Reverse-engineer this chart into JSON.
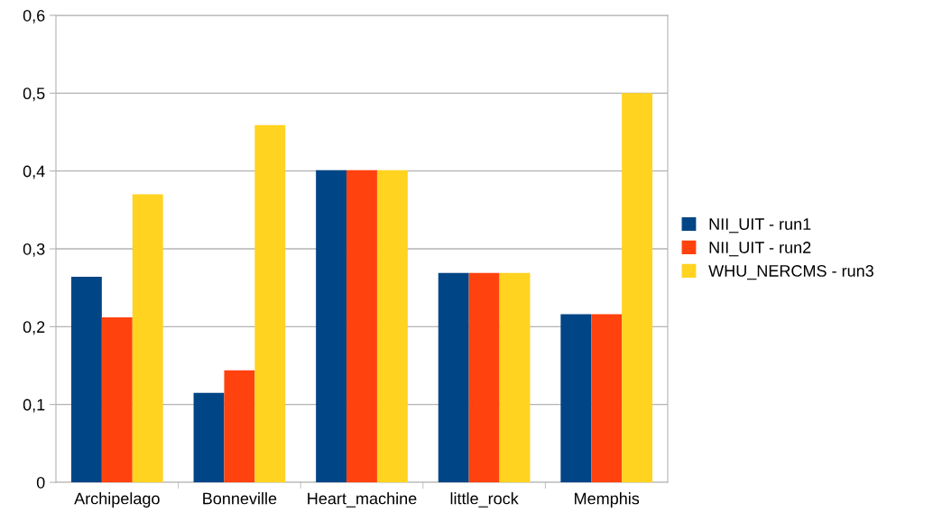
{
  "chart_data": {
    "type": "bar",
    "categories": [
      "Archipelago",
      "Bonneville",
      "Heart_machine",
      "little_rock",
      "Memphis"
    ],
    "series": [
      {
        "name": "NII_UIT - run1",
        "color": "#004586",
        "values": [
          0.264,
          0.115,
          0.401,
          0.269,
          0.216
        ]
      },
      {
        "name": "NII_UIT - run2",
        "color": "#ff420e",
        "values": [
          0.212,
          0.144,
          0.401,
          0.269,
          0.216
        ]
      },
      {
        "name": "WHU_NERCMS - run3",
        "color": "#ffd320",
        "values": [
          0.37,
          0.459,
          0.401,
          0.269,
          0.5
        ]
      }
    ],
    "ylim": [
      0,
      0.6
    ],
    "yticks": [
      0,
      {
        "value": 0.1,
        "label": "0,1"
      },
      {
        "value": 0.2,
        "label": "0,2"
      },
      {
        "value": 0.3,
        "label": "0,3"
      },
      {
        "value": 0.4,
        "label": "0,4"
      },
      {
        "value": 0.5,
        "label": "0,5"
      },
      {
        "value": 0.6,
        "label": "0,6"
      }
    ],
    "grid": "y",
    "legend": "right"
  }
}
